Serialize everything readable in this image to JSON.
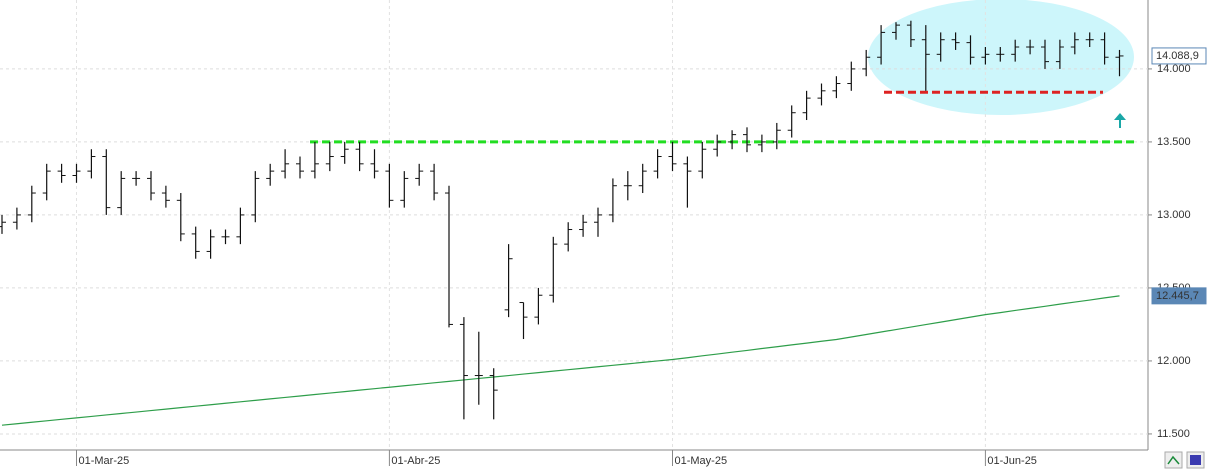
{
  "chart_data": {
    "type": "ohlc",
    "categories": [
      null,
      null,
      null,
      null,
      null,
      "01-Mar-25",
      null,
      null,
      null,
      null,
      null,
      null,
      null,
      null,
      null,
      null,
      null,
      null,
      null,
      null,
      null,
      null,
      null,
      null,
      null,
      null,
      "01-Abr-25",
      null,
      null,
      null,
      null,
      null,
      null,
      null,
      null,
      null,
      null,
      null,
      null,
      null,
      null,
      null,
      null,
      null,
      null,
      "01-May-25",
      null,
      null,
      null,
      null,
      null,
      null,
      null,
      null,
      null,
      null,
      null,
      null,
      null,
      null,
      null,
      null,
      null,
      null,
      null,
      null,
      "01-Jun-25",
      null,
      null,
      null,
      null,
      null,
      null,
      null,
      null,
      null
    ],
    "open": [
      12920,
      12950,
      13000,
      13150,
      13300,
      13270,
      13300,
      13400,
      13050,
      13250,
      13250,
      13150,
      13100,
      12870,
      12750,
      12850,
      12850,
      13000,
      13250,
      13300,
      13350,
      13300,
      13350,
      13400,
      13450,
      13350,
      13300,
      13100,
      13250,
      13300,
      13150,
      12250,
      11900,
      11900,
      12350,
      12400,
      12300,
      12450,
      12800,
      12900,
      12950,
      13000,
      13200,
      13200,
      13300,
      13400,
      13350,
      13300,
      13450,
      13500,
      13550,
      13480,
      13500,
      13580,
      13700,
      13800,
      13850,
      13900,
      14000,
      14080,
      14250,
      14300,
      14200,
      14100,
      14200,
      14180,
      14080,
      14100,
      14100,
      14150,
      14150,
      14050,
      14150,
      14200,
      14200,
      14080
    ],
    "high": [
      13000,
      13050,
      13200,
      13350,
      13350,
      13350,
      13450,
      13450,
      13300,
      13300,
      13300,
      13200,
      13150,
      12920,
      12900,
      12900,
      13050,
      13300,
      13350,
      13450,
      13400,
      13500,
      13500,
      13500,
      13500,
      13450,
      13350,
      13300,
      13350,
      13350,
      13200,
      12300,
      12200,
      11950,
      12800,
      12400,
      12500,
      12850,
      12950,
      13000,
      13050,
      13250,
      13300,
      13350,
      13450,
      13500,
      13400,
      13500,
      13550,
      13580,
      13600,
      13550,
      13630,
      13750,
      13850,
      13900,
      13950,
      14050,
      14130,
      14300,
      14320,
      14330,
      14300,
      14250,
      14250,
      14230,
      14150,
      14150,
      14200,
      14200,
      14200,
      14200,
      14250,
      14250,
      14250,
      14130
    ],
    "low": [
      12870,
      12900,
      12950,
      13100,
      13220,
      13220,
      13250,
      13000,
      13000,
      13200,
      13100,
      13050,
      12820,
      12700,
      12700,
      12800,
      12800,
      12950,
      13200,
      13250,
      13250,
      13250,
      13300,
      13350,
      13300,
      13250,
      13050,
      13050,
      13200,
      13100,
      12230,
      11600,
      11700,
      11600,
      12300,
      12150,
      12250,
      12400,
      12750,
      12850,
      12850,
      12950,
      13100,
      13150,
      13250,
      13300,
      13050,
      13250,
      13400,
      13450,
      13430,
      13430,
      13450,
      13530,
      13650,
      13750,
      13800,
      13850,
      13950,
      14030,
      14200,
      14150,
      13850,
      14050,
      14130,
      14030,
      14030,
      14050,
      14050,
      14100,
      14000,
      14000,
      14100,
      14150,
      14030,
      13950
    ],
    "close": [
      12950,
      13000,
      13150,
      13300,
      13270,
      13300,
      13400,
      13050,
      13250,
      13250,
      13150,
      13100,
      12870,
      12750,
      12850,
      12850,
      13000,
      13250,
      13300,
      13350,
      13300,
      13350,
      13400,
      13450,
      13350,
      13300,
      13100,
      13250,
      13300,
      13150,
      12250,
      11900,
      11900,
      11800,
      12700,
      12300,
      12450,
      12800,
      12900,
      12950,
      13000,
      13200,
      13200,
      13300,
      13400,
      13350,
      13300,
      13450,
      13500,
      13550,
      13480,
      13500,
      13580,
      13700,
      13800,
      13850,
      13900,
      14000,
      14080,
      14250,
      14300,
      14200,
      14100,
      14200,
      14180,
      14080,
      14100,
      14100,
      14150,
      14150,
      14050,
      14150,
      14200,
      14200,
      14080,
      14088.9
    ],
    "bar_color": "#111111",
    "moving_average": {
      "color": "#2e9e4a",
      "values": [
        11560,
        11570,
        11580,
        11590,
        11600,
        11610,
        11620,
        11630,
        11640,
        11650,
        11660,
        11670,
        11680,
        11690,
        11700,
        11710,
        11720,
        11730,
        11740,
        11750,
        11760,
        11770,
        11780,
        11790,
        11800,
        11810,
        11820,
        11830,
        11840,
        11850,
        11860,
        11870,
        11880,
        11890,
        11900,
        11910,
        11920,
        11930,
        11940,
        11950,
        11960,
        11970,
        11980,
        11990,
        12000,
        12010,
        12022,
        12035,
        12047,
        12060,
        12072,
        12085,
        12097,
        12110,
        12122,
        12135,
        12147,
        12164,
        12181,
        12198,
        12215,
        12232,
        12249,
        12266,
        12283,
        12300,
        12317,
        12331,
        12346,
        12360,
        12374,
        12389,
        12403,
        12417,
        12432,
        12445.7
      ]
    },
    "ylim": [
      11390,
      14472
    ],
    "yticks": [
      {
        "value": 11500,
        "label": "11.500"
      },
      {
        "value": 12000,
        "label": "12.000"
      },
      {
        "value": 12500,
        "label": "12.500"
      },
      {
        "value": 13000,
        "label": "13.000"
      },
      {
        "value": 13500,
        "label": "13.500"
      },
      {
        "value": 14000,
        "label": "14.000"
      }
    ],
    "grid": true,
    "hlines": [
      {
        "value": 13500,
        "color": "#22dd22"
      },
      {
        "value": 13840,
        "color": "#dd2222"
      }
    ],
    "price_labels": [
      {
        "value": 14088.9,
        "label": "14.088,9",
        "background": "#ffffff",
        "text_color": "#333333"
      },
      {
        "value": 12445.7,
        "label": "12.445,7",
        "background": "#5b87b5",
        "text_color": "#ffffff"
      }
    ]
  }
}
